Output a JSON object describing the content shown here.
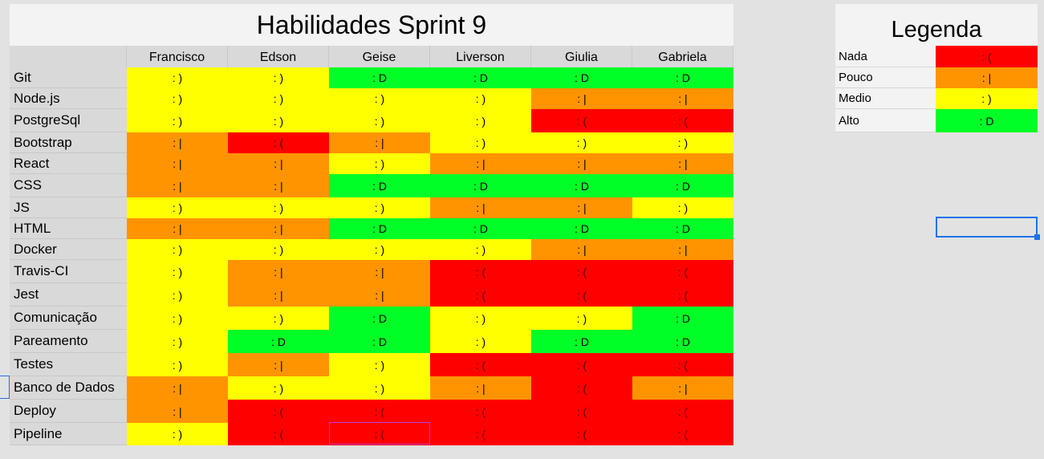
{
  "sheet": {
    "title": "Habilidades Sprint 9",
    "people": [
      "Francisco",
      "Edson",
      "Geise",
      "Liverson",
      "Giulia",
      "Gabriela"
    ],
    "skills": [
      {
        "name": "Git",
        "levels": [
          2,
          2,
          3,
          3,
          3,
          3
        ]
      },
      {
        "name": "Node.js",
        "levels": [
          2,
          2,
          2,
          2,
          1,
          1
        ]
      },
      {
        "name": "PostgreSql",
        "levels": [
          2,
          2,
          2,
          2,
          0,
          0
        ]
      },
      {
        "name": "Bootstrap",
        "levels": [
          1,
          0,
          1,
          2,
          2,
          2
        ]
      },
      {
        "name": "React",
        "levels": [
          1,
          1,
          2,
          1,
          1,
          1
        ]
      },
      {
        "name": "CSS",
        "levels": [
          1,
          1,
          3,
          3,
          3,
          3
        ]
      },
      {
        "name": "JS",
        "levels": [
          2,
          2,
          2,
          1,
          1,
          2
        ]
      },
      {
        "name": "HTML",
        "levels": [
          1,
          1,
          3,
          3,
          3,
          3
        ]
      },
      {
        "name": "Docker",
        "levels": [
          2,
          2,
          2,
          2,
          1,
          1
        ]
      },
      {
        "name": "Travis-CI",
        "levels": [
          2,
          1,
          1,
          0,
          0,
          0
        ]
      },
      {
        "name": "Jest",
        "levels": [
          2,
          1,
          1,
          0,
          0,
          0
        ]
      },
      {
        "name": "Comunicação",
        "levels": [
          2,
          2,
          3,
          2,
          2,
          3
        ]
      },
      {
        "name": "Pareamento",
        "levels": [
          2,
          3,
          3,
          2,
          3,
          3
        ]
      },
      {
        "name": "Testes",
        "levels": [
          2,
          1,
          2,
          0,
          0,
          0
        ]
      },
      {
        "name": "Banco de Dados",
        "levels": [
          1,
          2,
          2,
          1,
          0,
          1
        ]
      },
      {
        "name": "Deploy",
        "levels": [
          1,
          0,
          0,
          0,
          0,
          0
        ]
      },
      {
        "name": "Pipeline",
        "levels": [
          2,
          0,
          0,
          0,
          0,
          0
        ]
      }
    ]
  },
  "legend": {
    "title": "Legenda",
    "items": [
      {
        "label": "Nada",
        "symbol": ": (",
        "color": "#ff0000"
      },
      {
        "label": "Pouco",
        "symbol": ": |",
        "color": "#ff9400"
      },
      {
        "label": "Medio",
        "symbol": ": )",
        "color": "#ffff00"
      },
      {
        "label": "Alto",
        "symbol": ": D",
        "color": "#00ff26"
      }
    ]
  }
}
